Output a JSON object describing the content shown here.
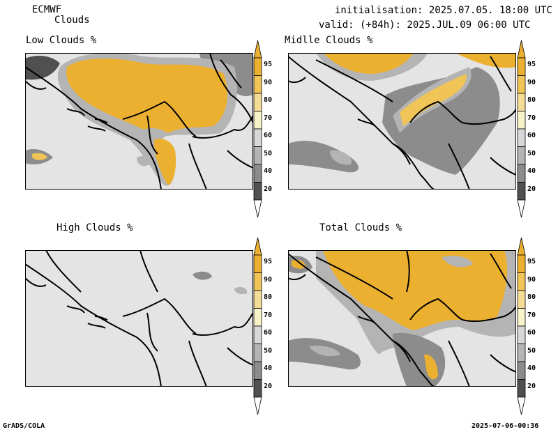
{
  "header": {
    "model": "ECMWF",
    "product": "Clouds",
    "init": "initialisation: 2025.07.05. 18:00 UTC",
    "valid": "valid: (+84h): 2025.JUL.09 06:00 UTC"
  },
  "panels": [
    {
      "id": "low",
      "title": "Low Clouds %"
    },
    {
      "id": "middle",
      "title": "Midlle Clouds %"
    },
    {
      "id": "high",
      "title": "High Clouds %"
    },
    {
      "id": "total",
      "title": "Total Clouds %"
    }
  ],
  "colorbar": {
    "levels": [
      "95",
      "90",
      "80",
      "70",
      "60",
      "50",
      "40",
      "20"
    ],
    "colors": {
      "95": "#ecb030",
      "90": "#f0c456",
      "80": "#f4dc96",
      "70": "#f8f2c8",
      "60": "#d8d8d8",
      "50": "#b4b4b4",
      "40": "#8c8c8c",
      "20": "#505050",
      "below": "#ffffff",
      "background": "#e4e4e4"
    }
  },
  "footer": {
    "left": "GrADS/COLA",
    "right": "2025-07-06-00:36"
  }
}
